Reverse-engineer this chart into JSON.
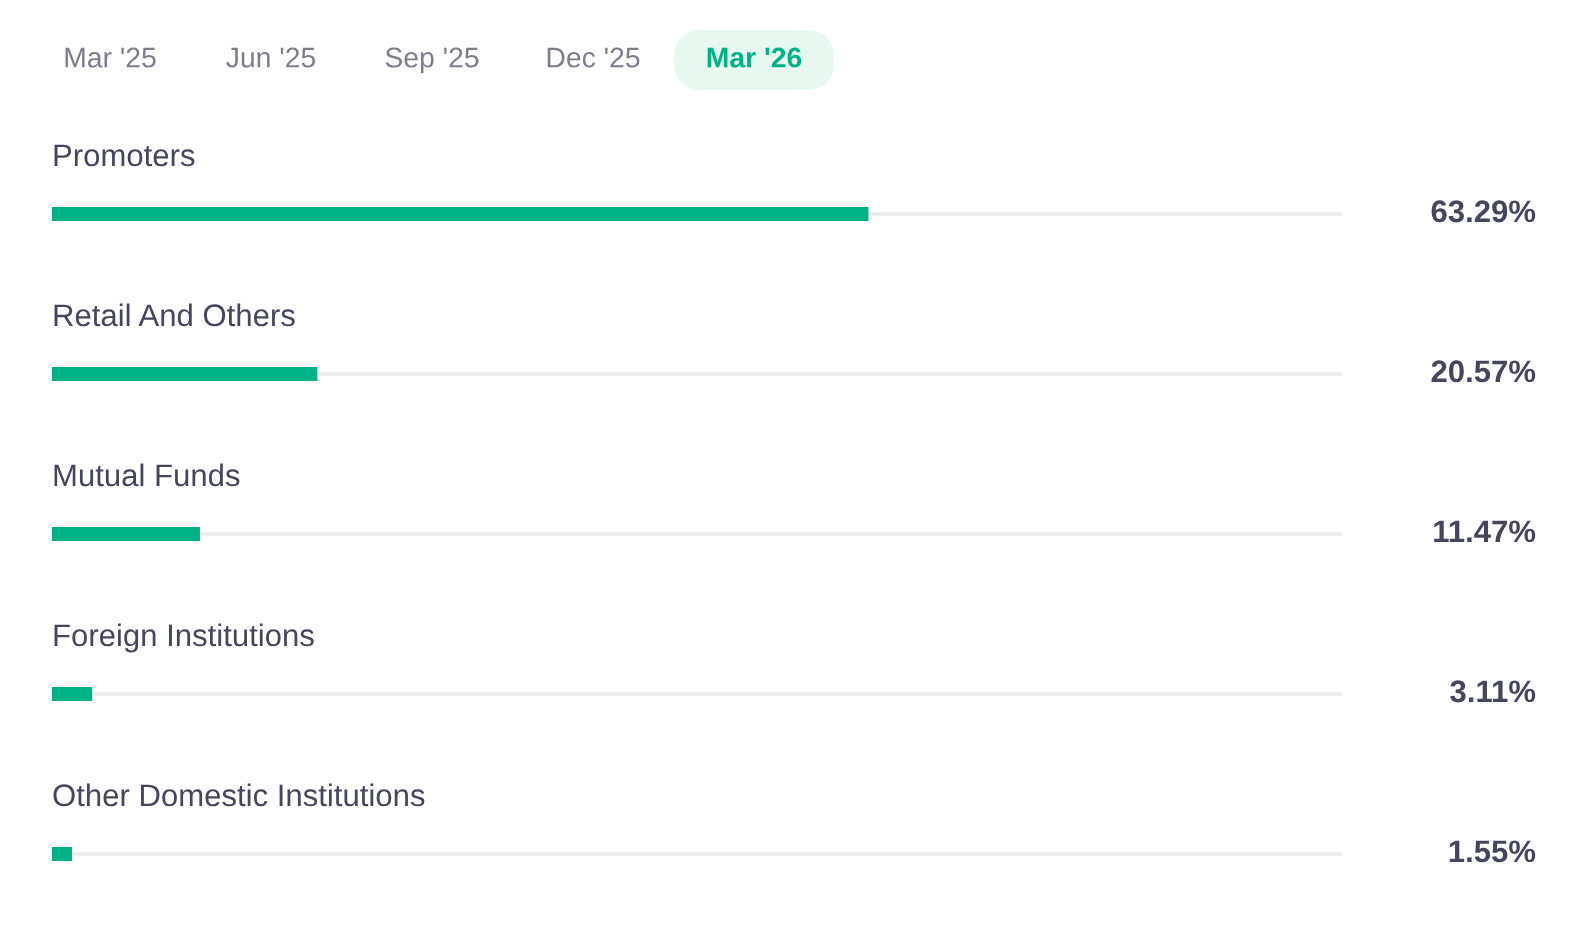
{
  "chart_data": {
    "type": "bar",
    "orientation": "horizontal",
    "categories": [
      "Promoters",
      "Retail And Others",
      "Mutual Funds",
      "Foreign Institutions",
      "Other Domestic Institutions"
    ],
    "values": [
      63.29,
      20.57,
      11.47,
      3.11,
      1.55
    ],
    "value_labels": [
      "63.29%",
      "20.57%",
      "11.47%",
      "3.11%",
      "1.55%"
    ],
    "color": "#00b386",
    "xlim": [
      0,
      100
    ],
    "tick_labels": "y",
    "annotations": [
      "Mar '25",
      "Jun '25",
      "Sep '25",
      "Dec '25",
      "Mar '26"
    ]
  }
}
